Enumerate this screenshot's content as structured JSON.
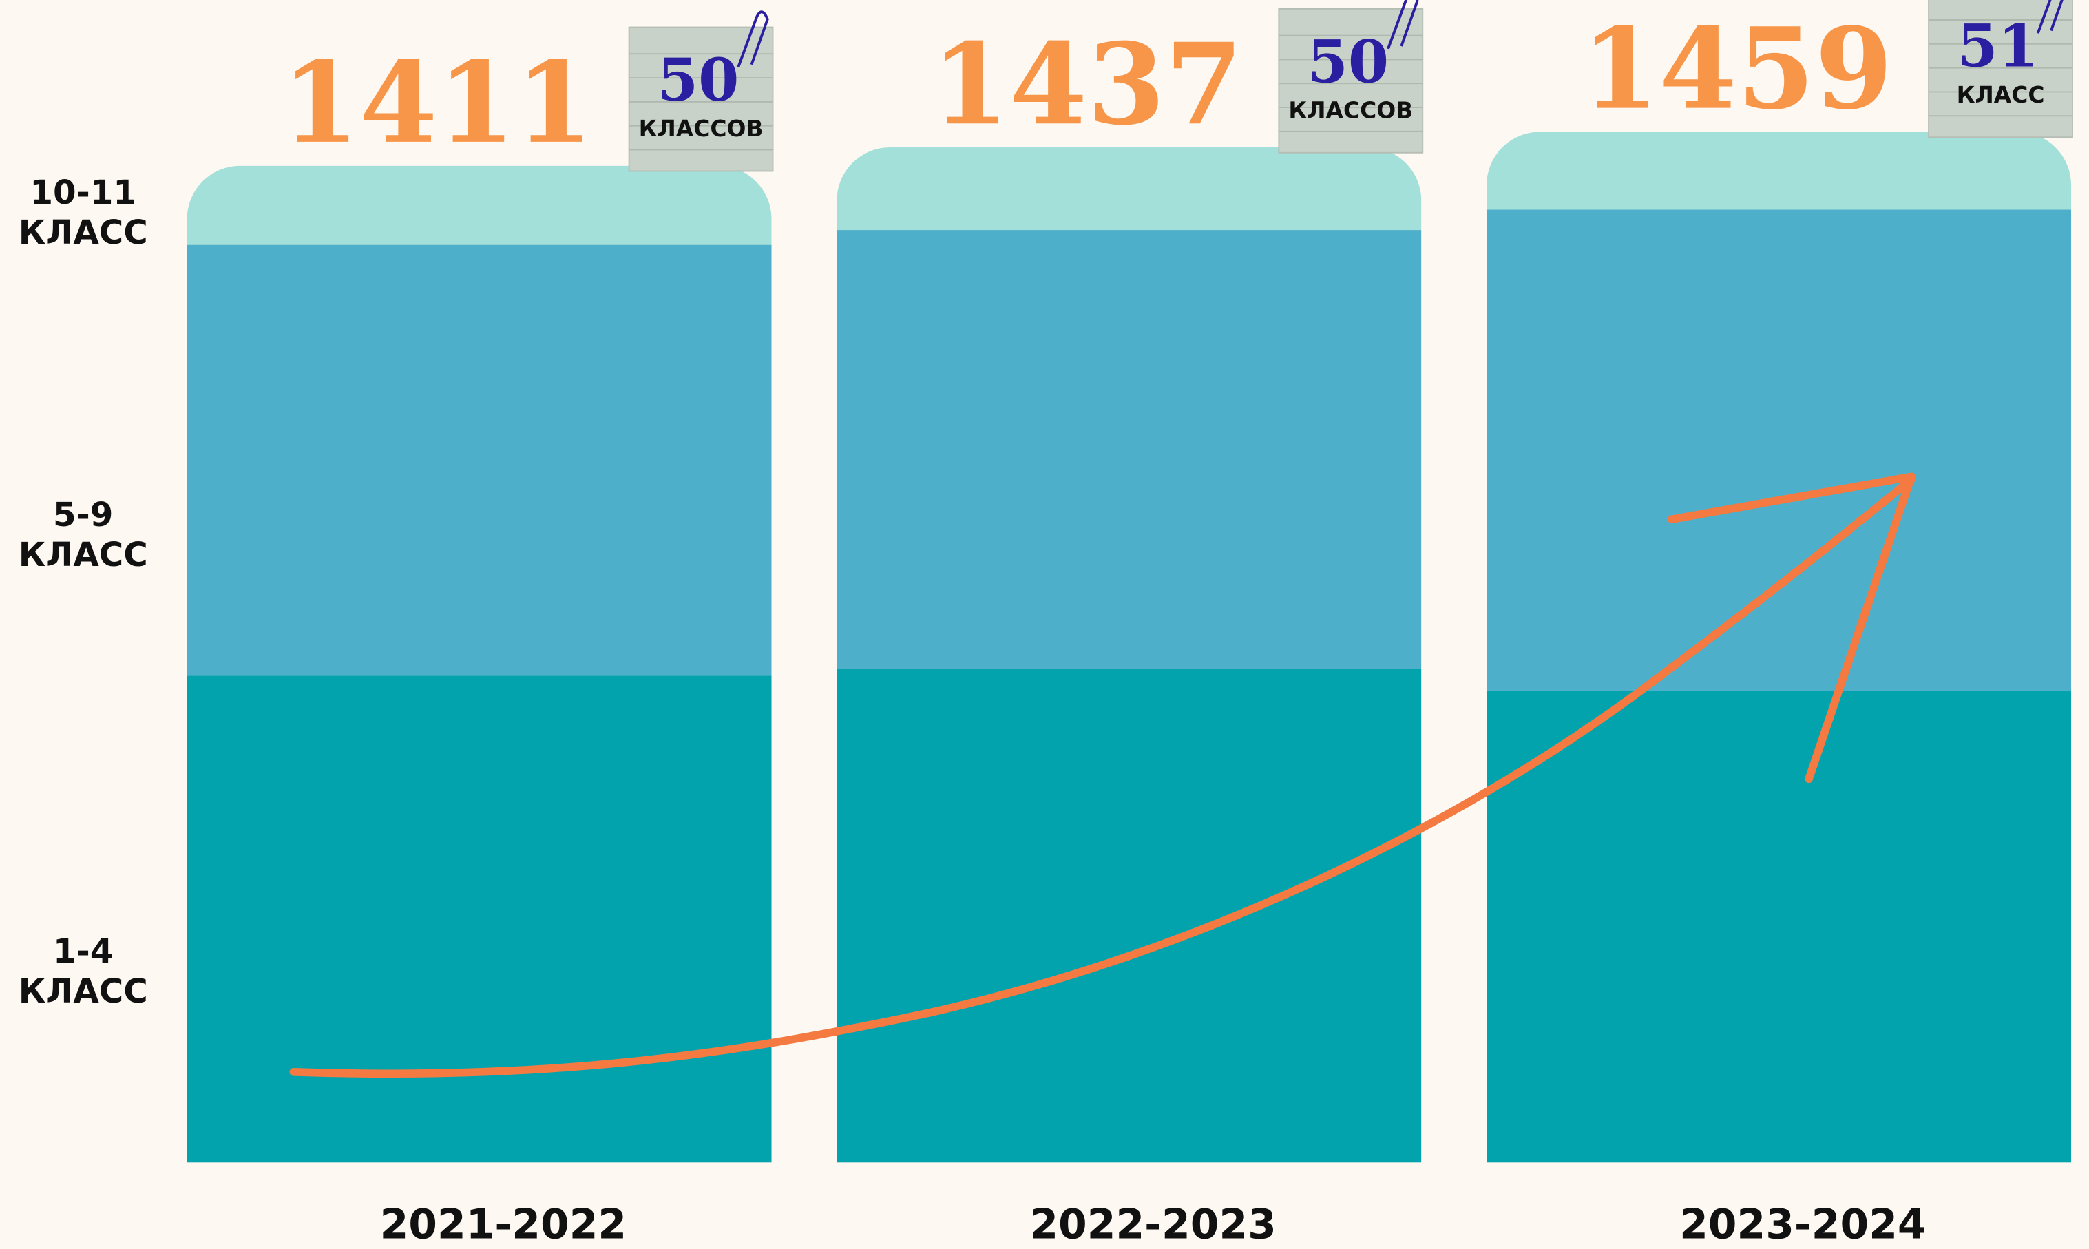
{
  "chart_data": {
    "type": "stacked_bar",
    "categories": [
      "2021-2022",
      "2022-2023",
      "2023-2024"
    ],
    "series": [
      {
        "name": "1-4 КЛАСС",
        "color": "#03a3ad",
        "values": [
          689,
          699,
          667
        ]
      },
      {
        "name": "5-9 КЛАСС",
        "color": "#4dafca",
        "values": [
          610,
          621,
          682
        ]
      },
      {
        "name": "10-11 КЛАСС",
        "color": "#a3e0d9",
        "values": [
          112,
          117,
          110
        ]
      }
    ],
    "totals": [
      1411,
      1437,
      1459
    ],
    "total_color": "#f79548",
    "classes": {
      "values": [
        50,
        50,
        51
      ],
      "labels": [
        "КЛАССОВ",
        "КЛАССОВ",
        "КЛАСС"
      ]
    }
  }
}
